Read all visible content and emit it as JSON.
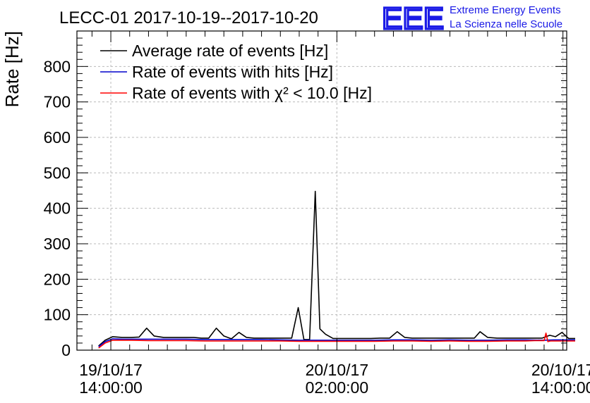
{
  "title": "LECC-01 2017-10-19--2017-10-20",
  "brand": {
    "logo_text": "EEE",
    "line1": "Extreme Energy Events",
    "line2": "La Scienza nelle Scuole",
    "color": "#1a1ae6"
  },
  "colors": {
    "average": "#000000",
    "hits": "#0000cc",
    "chi2": "#ff0000",
    "grid": "#bbbbbb"
  },
  "chart_data": {
    "type": "line",
    "title": "LECC-01 2017-10-19--2017-10-20",
    "xlabel": "",
    "ylabel": "Rate [Hz]",
    "ylim": [
      0,
      900
    ],
    "xlim": [
      -1.8,
      24.2
    ],
    "x_units": "hours since 2017-10-19 14:00:00",
    "yticks": [
      0,
      100,
      200,
      300,
      400,
      500,
      600,
      700,
      800
    ],
    "xticks": [
      {
        "x": 0,
        "line1": "19/10/17",
        "line2": "14:00:00"
      },
      {
        "x": 12,
        "line1": "20/10/17",
        "line2": "02:00:00"
      },
      {
        "x": 24,
        "line1": "20/10/17",
        "line2": "14:00:00"
      }
    ],
    "grid": true,
    "legend_position": "top-left",
    "series": [
      {
        "name": "Average rate of events [Hz]",
        "color_key": "average",
        "x": [
          -0.65,
          -0.3,
          0.1,
          0.6,
          1.1,
          1.5,
          1.9,
          2.3,
          2.8,
          3.4,
          4.0,
          4.4,
          4.8,
          5.2,
          5.6,
          6.0,
          6.4,
          6.8,
          7.2,
          7.6,
          8.0,
          8.4,
          8.8,
          9.2,
          9.6,
          9.95,
          10.25,
          10.55,
          10.85,
          11.1,
          11.4,
          11.8,
          12.2,
          12.6,
          13.0,
          13.4,
          13.8,
          14.3,
          14.8,
          15.2,
          15.6,
          16.0,
          16.4,
          16.9,
          17.4,
          17.8,
          18.3,
          18.8,
          19.3,
          19.6,
          20.0,
          20.5,
          20.9,
          21.3,
          21.8,
          22.4,
          22.9,
          23.3,
          23.6,
          23.95,
          24.3,
          24.65
        ],
        "y": [
          12,
          28,
          38,
          36,
          36,
          37,
          62,
          40,
          36,
          36,
          36,
          36,
          34,
          34,
          62,
          40,
          32,
          50,
          36,
          34,
          34,
          34,
          34,
          34,
          34,
          120,
          30,
          30,
          448,
          60,
          45,
          33,
          33,
          33,
          33,
          33,
          33,
          34,
          34,
          52,
          36,
          34,
          34,
          34,
          34,
          34,
          34,
          34,
          34,
          52,
          36,
          34,
          34,
          34,
          34,
          34,
          34,
          42,
          38,
          50,
          33,
          33
        ]
      },
      {
        "name": "Rate of events with hits [Hz]",
        "color_key": "hits",
        "x": [
          -0.65,
          -0.3,
          0.1,
          0.6,
          1.1,
          2.0,
          3.0,
          4.0,
          5.0,
          6.0,
          7.0,
          8.0,
          9.0,
          10.0,
          11.0,
          12.0,
          13.0,
          14.0,
          15.0,
          16.0,
          17.0,
          18.0,
          19.0,
          20.0,
          21.0,
          22.0,
          23.0,
          23.5,
          24.0,
          24.65
        ],
        "y": [
          10,
          24,
          32,
          31,
          31,
          31,
          31,
          31,
          30,
          30,
          30,
          30,
          29,
          28,
          28,
          28,
          28,
          28,
          29,
          29,
          28,
          29,
          28,
          28,
          29,
          29,
          28,
          29,
          29,
          29
        ]
      },
      {
        "name": "Rate of events with χ² < 10.0 [Hz]",
        "color_key": "chi2",
        "x": [
          -0.65,
          -0.3,
          0.1,
          0.6,
          1.1,
          2.0,
          3.0,
          4.0,
          5.0,
          6.0,
          7.0,
          8.0,
          9.0,
          10.0,
          11.0,
          12.0,
          13.0,
          14.0,
          15.0,
          16.0,
          17.0,
          18.0,
          19.0,
          20.0,
          21.0,
          22.0,
          22.5,
          23.0,
          23.1,
          23.2,
          23.35,
          23.5,
          24.0,
          24.65
        ],
        "y": [
          6,
          20,
          28,
          28,
          28,
          27,
          27,
          27,
          26,
          26,
          26,
          26,
          26,
          25,
          25,
          25,
          25,
          25,
          26,
          26,
          25,
          26,
          25,
          25,
          26,
          26,
          27,
          27,
          48,
          24,
          26,
          26,
          26,
          26
        ]
      }
    ]
  }
}
